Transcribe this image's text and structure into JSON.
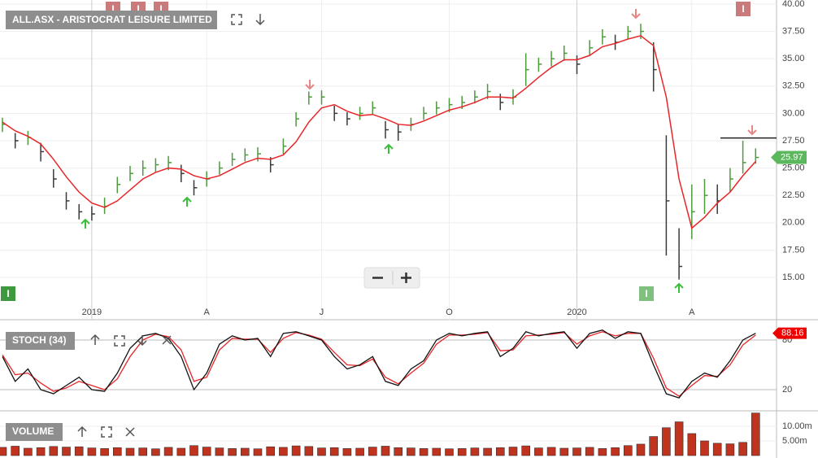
{
  "event_label": "I",
  "chart_data": [
    {
      "type": "ohlc",
      "title": "ALL.ASX - ARISTOCRAT LEISURE LIMITED",
      "categories": [
        null,
        null,
        null,
        null,
        null,
        null,
        null,
        "2019",
        null,
        null,
        null,
        null,
        null,
        null,
        null,
        null,
        "A",
        null,
        null,
        null,
        null,
        null,
        null,
        null,
        null,
        "J",
        null,
        null,
        null,
        null,
        null,
        null,
        null,
        null,
        null,
        "O",
        null,
        null,
        null,
        null,
        null,
        null,
        null,
        null,
        null,
        "2020",
        null,
        null,
        null,
        null,
        null,
        null,
        null,
        null,
        "A",
        null,
        null,
        null,
        null,
        null
      ],
      "high": [
        29.6,
        28.2,
        28.4,
        27.3,
        24.9,
        22.8,
        21.7,
        21.5,
        22.3,
        24.2,
        25.2,
        25.7,
        25.9,
        26.1,
        25.3,
        23.9,
        24.7,
        25.6,
        26.4,
        26.8,
        26.9,
        26.0,
        27.7,
        30.1,
        32.0,
        32.1,
        30.7,
        30.1,
        30.6,
        31.1,
        29.3,
        29.0,
        29.6,
        30.6,
        31.1,
        31.4,
        31.6,
        32.1,
        32.7,
        31.8,
        32.2,
        35.5,
        35.1,
        35.7,
        36.2,
        35.3,
        36.7,
        37.7,
        37.2,
        38.0,
        38.2,
        36.5,
        28.0,
        19.5,
        23.5,
        24.0,
        23.5,
        25.0,
        27.5,
        26.8
      ],
      "low": [
        28.3,
        26.8,
        27.1,
        25.6,
        23.2,
        21.2,
        20.3,
        20.2,
        20.8,
        22.7,
        23.8,
        24.3,
        24.6,
        24.8,
        23.7,
        22.5,
        23.3,
        24.4,
        25.2,
        25.6,
        25.6,
        24.6,
        26.3,
        28.8,
        30.8,
        30.8,
        29.3,
        28.9,
        29.4,
        29.9,
        27.7,
        27.5,
        28.4,
        29.4,
        29.9,
        30.1,
        30.4,
        30.9,
        31.3,
        30.3,
        30.8,
        32.5,
        33.8,
        34.3,
        34.8,
        33.6,
        35.3,
        36.3,
        35.8,
        36.8,
        36.8,
        32.0,
        17.0,
        14.8,
        18.5,
        20.8,
        20.8,
        22.8,
        24.5,
        25.4
      ],
      "close": [
        29.0,
        27.5,
        27.8,
        26.5,
        24.0,
        22.0,
        21.0,
        20.8,
        21.5,
        23.5,
        24.5,
        25.0,
        25.3,
        25.5,
        24.5,
        23.2,
        24.0,
        25.0,
        25.8,
        26.2,
        26.3,
        25.3,
        27.0,
        29.5,
        31.5,
        31.5,
        30.0,
        29.5,
        30.0,
        30.5,
        28.5,
        28.3,
        29.0,
        30.0,
        30.5,
        30.8,
        31.0,
        31.5,
        32.0,
        31.0,
        31.5,
        34.0,
        34.5,
        35.0,
        35.5,
        34.5,
        36.0,
        37.0,
        36.5,
        37.5,
        37.5,
        34.0,
        22.0,
        16.0,
        21.0,
        22.5,
        22.0,
        24.0,
        25.5,
        25.97
      ],
      "up_color": "#4c9a3c",
      "down_color": "#3a3a3a",
      "ma": {
        "color": "#e8262a",
        "values": [
          29.2,
          28.4,
          27.9,
          27.2,
          25.8,
          24.2,
          22.8,
          21.8,
          21.4,
          22.0,
          23.0,
          24.0,
          24.6,
          25.0,
          24.9,
          24.3,
          24.0,
          24.3,
          24.9,
          25.5,
          25.9,
          25.8,
          26.2,
          27.4,
          29.2,
          30.5,
          30.8,
          30.2,
          29.8,
          29.9,
          29.5,
          29.0,
          28.9,
          29.3,
          29.8,
          30.3,
          30.6,
          31.0,
          31.5,
          31.5,
          31.4,
          32.3,
          33.3,
          34.2,
          34.9,
          34.9,
          35.3,
          36.1,
          36.4,
          36.8,
          37.1,
          36.2,
          31.5,
          24.0,
          19.5,
          20.5,
          21.8,
          22.8,
          24.3,
          25.6
        ]
      },
      "level": 27.75,
      "ylim": [
        12.84,
        40.37
      ],
      "yticks": [
        {
          "value": 15,
          "label": "15.00"
        },
        {
          "value": 17.5,
          "label": "17.50"
        },
        {
          "value": 20,
          "label": "20.00"
        },
        {
          "value": 22.5,
          "label": "22.50"
        },
        {
          "value": 25,
          "label": "25.00"
        },
        {
          "value": 27.5,
          "label": "27.50"
        },
        {
          "value": 30,
          "label": "30.00"
        },
        {
          "value": 32.5,
          "label": "32.50"
        },
        {
          "value": 35,
          "label": "35.00"
        },
        {
          "value": 37.5,
          "label": "37.50"
        },
        {
          "value": 40,
          "label": "40.00"
        }
      ],
      "grid": true
    },
    {
      "type": "line",
      "title": "STOCH (34)",
      "series": [
        {
          "color": "#111111",
          "values": [
            60,
            30,
            45,
            20,
            15,
            25,
            35,
            20,
            18,
            40,
            70,
            85,
            88,
            82,
            60,
            20,
            40,
            75,
            85,
            80,
            82,
            60,
            88,
            90,
            85,
            80,
            60,
            45,
            50,
            60,
            30,
            25,
            45,
            55,
            80,
            88,
            85,
            88,
            90,
            60,
            70,
            90,
            85,
            88,
            90,
            70,
            88,
            92,
            82,
            90,
            88,
            50,
            15,
            10,
            30,
            40,
            35,
            55,
            80,
            88.16
          ]
        },
        {
          "color": "#e8262a",
          "values": [
            62,
            38,
            40,
            28,
            18,
            22,
            30,
            25,
            20,
            33,
            60,
            80,
            87,
            84,
            68,
            30,
            35,
            68,
            82,
            81,
            81,
            65,
            82,
            89,
            86,
            81,
            65,
            50,
            49,
            57,
            35,
            27,
            40,
            52,
            75,
            86,
            86,
            87,
            89,
            67,
            68,
            85,
            86,
            87,
            89,
            75,
            85,
            90,
            85,
            88,
            88,
            58,
            22,
            12,
            25,
            37,
            36,
            50,
            74,
            86
          ]
        }
      ],
      "ylim": [
        -5.6,
        101.6
      ],
      "yticks": [
        20,
        80
      ],
      "grid": true
    },
    {
      "type": "bar",
      "title": "VOLUME",
      "color": "#c0331f",
      "values": [
        2800000,
        3200000,
        2500000,
        2700000,
        3100000,
        2900000,
        3000000,
        2600000,
        2400000,
        2700000,
        2500000,
        2600000,
        2300000,
        2800000,
        2500000,
        3400000,
        2900000,
        2600000,
        2400000,
        2500000,
        2300000,
        3000000,
        2800000,
        3300000,
        3100000,
        2600000,
        2700000,
        2400000,
        2500000,
        2900000,
        3200000,
        2700000,
        2600000,
        2400000,
        2500000,
        2300000,
        2400000,
        2600000,
        2500000,
        2700000,
        2900000,
        3300000,
        2600000,
        2800000,
        2500000,
        2600000,
        2800000,
        2400000,
        2700000,
        3400000,
        3900000,
        6500000,
        9500000,
        11500000,
        7500000,
        5000000,
        4200000,
        4000000,
        4500000,
        14500000
      ],
      "ylim": [
        0,
        14700000
      ],
      "yticks": [
        {
          "value": 5000000,
          "label": "5.00m"
        },
        {
          "value": 10000000,
          "label": "10.00m"
        }
      ],
      "grid": true
    }
  ]
}
